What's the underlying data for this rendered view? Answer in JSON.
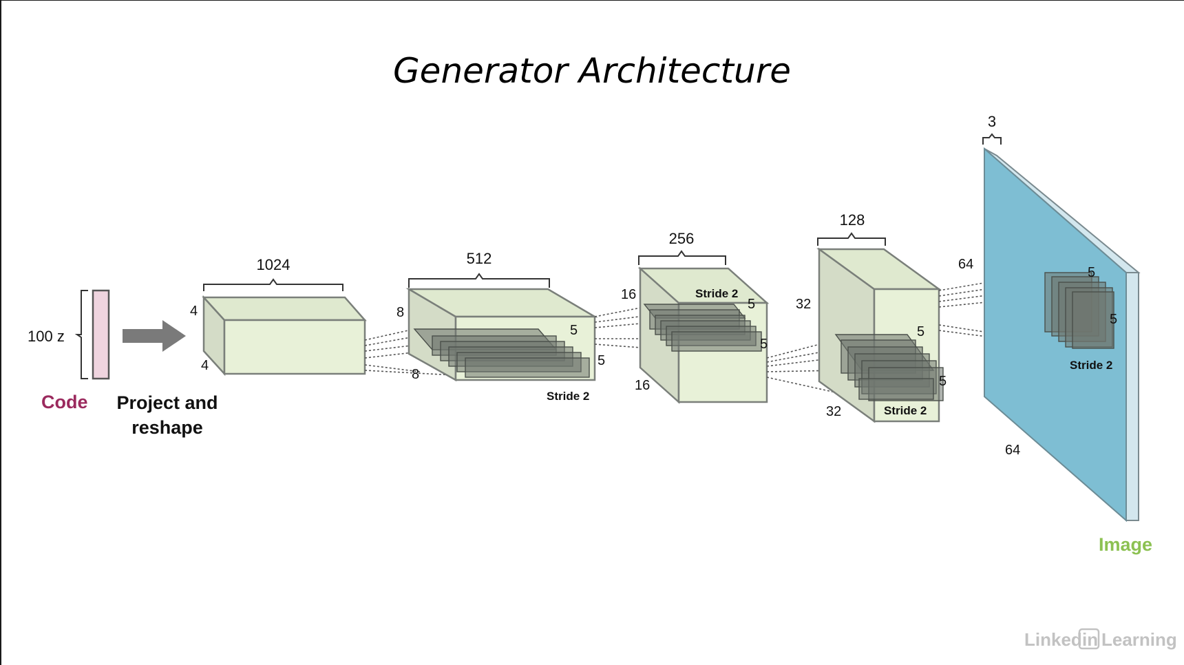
{
  "title": "Generator Architecture",
  "code": {
    "dim": "100 z",
    "label": "Code",
    "label_color": "#9b2a5e",
    "fill_color": "#efd4df"
  },
  "project": {
    "label_line1": "Project and",
    "label_line2": "reshape"
  },
  "layers": [
    {
      "depth": "1024",
      "height": "4",
      "width": "4"
    },
    {
      "depth": "512",
      "height": "8",
      "width": "8",
      "kernel_h": "5",
      "kernel_w": "5",
      "stride": "Stride 2"
    },
    {
      "depth": "256",
      "height": "16",
      "width": "16",
      "kernel_h": "5",
      "kernel_w": "5",
      "stride": "Stride 2"
    },
    {
      "depth": "128",
      "height": "32",
      "width": "32",
      "kernel_h": "5",
      "kernel_w": "5",
      "stride": "Stride 2"
    }
  ],
  "output": {
    "depth": "3",
    "height": "64",
    "width": "64",
    "kernel_h": "5",
    "kernel_w": "5",
    "stride": "Stride 2",
    "label": "Image",
    "label_color": "#8cc152",
    "fill_color": "#7ebed3",
    "edge_color": "#d3e7ee"
  },
  "watermark": {
    "part1": "Linked",
    "badge": "in",
    "part2": "Learning"
  }
}
